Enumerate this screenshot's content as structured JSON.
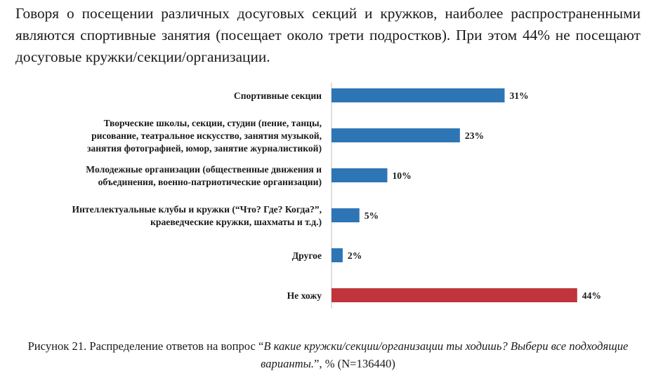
{
  "intro": {
    "text": "Говоря о посещении различных досуговых секций и кружков, наиболее распространенными являются спортивные занятия (посещает около трети подростков). При этом 44% не посещают досуговые кружки/секции/организации."
  },
  "chart_data": {
    "type": "bar",
    "orientation": "horizontal",
    "categories": [
      [
        "Спортивные секции"
      ],
      [
        "Творческие школы, секции, студии (пение, танцы,",
        "рисование, театральное искусство, занятия музыкой,",
        "занятия фотографией, юмор, занятие журналистикой)"
      ],
      [
        "Молодежные организации (общественные движения и",
        "объединения, военно-патриотические организации)"
      ],
      [
        "Интеллектуальные клубы и кружки (“Что? Где? Когда?”,",
        "краеведческие кружки, шахматы и т.д.)"
      ],
      [
        "Другое"
      ],
      [
        "Не хожу"
      ]
    ],
    "values": [
      31,
      23,
      10,
      5,
      2,
      44
    ],
    "value_labels": [
      "31%",
      "23%",
      "10%",
      "5%",
      "2%",
      "44%"
    ],
    "colors": [
      "#2e75b6",
      "#2e75b6",
      "#2e75b6",
      "#2e75b6",
      "#2e75b6",
      "#c0343b"
    ],
    "axis_color": "#bfbfbf",
    "grid": false,
    "legend": "none"
  },
  "caption": {
    "prefix": "Рисунок 21. Распределение ответов на вопрос “",
    "question": "В какие кружки/секции/организации ты ходишь? Выбери все подходящие варианты.",
    "suffix": "”, % (N=136440)"
  }
}
